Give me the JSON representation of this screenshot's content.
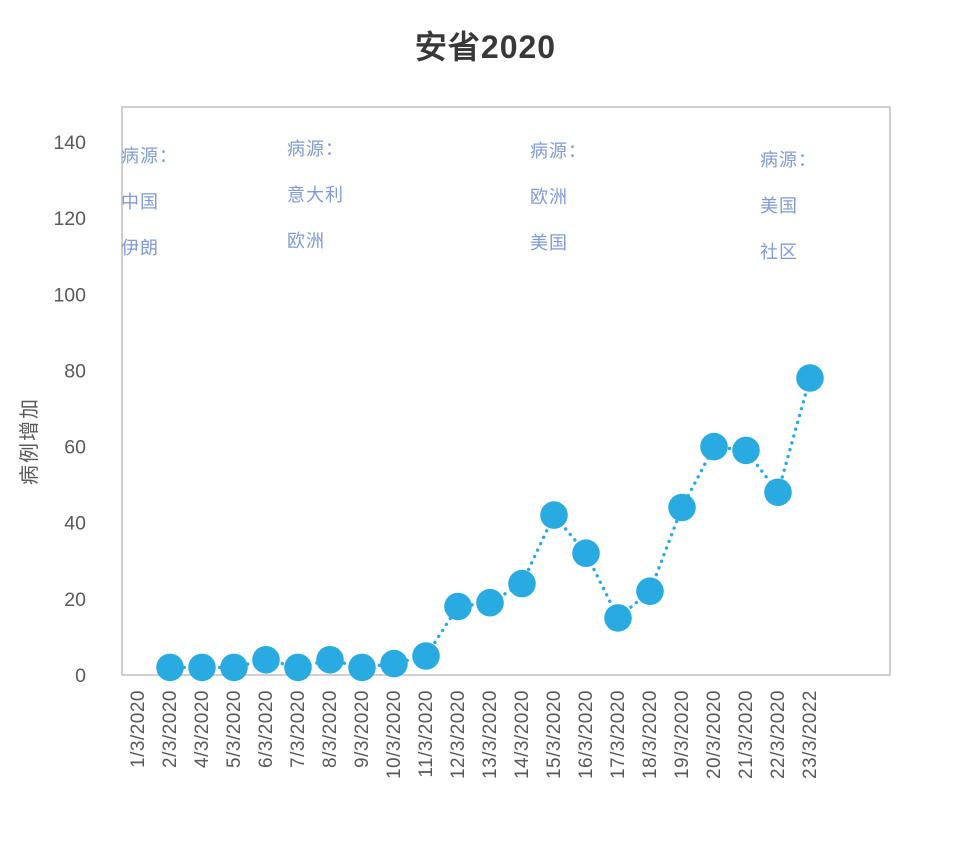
{
  "title": "安省2020",
  "chart_data": {
    "type": "line",
    "title": "安省2020",
    "xlabel": "",
    "ylabel": "病例增加",
    "categories": [
      "1/3/2020",
      "2/3/2020",
      "4/3/2020",
      "5/3/2020",
      "6/3/2020",
      "7/3/2020",
      "8/3/2020",
      "9/3/2020",
      "10/3/2020",
      "11/3/2020",
      "12/3/2020",
      "13/3/2020",
      "14/3/2020",
      "15/3/2020",
      "16/3/2020",
      "17/3/2020",
      "18/3/2020",
      "19/3/2020",
      "20/3/2020",
      "21/3/2020",
      "22/3/2020",
      "23/3/2022"
    ],
    "values": [
      null,
      2,
      2,
      2,
      4,
      2,
      4,
      2,
      3,
      5,
      18,
      19,
      24,
      42,
      32,
      15,
      22,
      44,
      60,
      59,
      48,
      78
    ],
    "ylim": [
      0,
      140
    ],
    "y_ticks": [
      0,
      20,
      40,
      60,
      80,
      100,
      120,
      140
    ],
    "grid": false,
    "legend": false,
    "line_style": "dotted",
    "marker": "circle",
    "marker_color": "#29ABE2",
    "axis_text_color": "#595959",
    "annotation_color": "#7F9BD8",
    "annotations": [
      {
        "heading": "病源：",
        "sources": [
          "中国",
          "伊朗"
        ]
      },
      {
        "heading": "病源：",
        "sources": [
          "意大利",
          "欧洲"
        ]
      },
      {
        "heading": "病源：",
        "sources": [
          "欧洲",
          "美国"
        ]
      },
      {
        "heading": "病源：",
        "sources": [
          "美国",
          "社区"
        ]
      }
    ]
  }
}
